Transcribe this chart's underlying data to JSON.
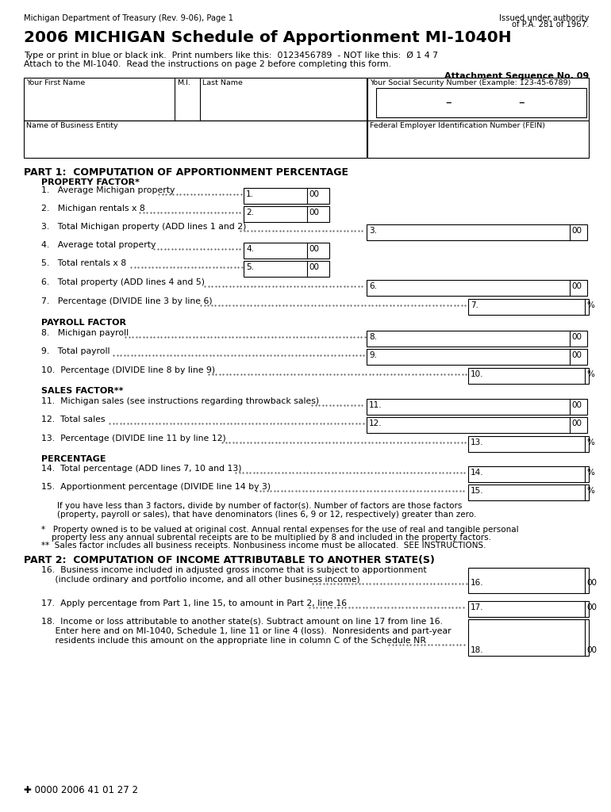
{
  "bg_color": "#ffffff",
  "header_line1": "Michigan Department of Treasury (Rev. 9-06), Page 1",
  "header_right1": "Issued under authority",
  "header_right2": "of P.A. 281 of 1967.",
  "title": "2006 MICHIGAN Schedule of Apportionment MI-1040H",
  "inst1": "Type or print in blue or black ink.  Print numbers like this:  0123456789  - NOT like this:  Ø 1 4 7",
  "inst2": "Attach to the MI-1040.  Read the instructions on page 2 before completing this form.",
  "attachment": "Attachment Sequence No. 09",
  "label_firstname": "Your First Name",
  "label_mi": "M.I.",
  "label_lastname": "Last Name",
  "label_ssn": "Your Social Security Number (Example: 123-45-6789)",
  "label_biz": "Name of Business Entity",
  "label_fein": "Federal Employer Identification Number (FEIN)",
  "part1_title": "PART 1:  COMPUTATION OF APPORTIONMENT PERCENTAGE",
  "prop_factor": "PROPERTY FACTOR*",
  "l1": "1.   Average Michigan property",
  "l2": "2.   Michigan rentals x 8",
  "l3": "3.   Total Michigan property (ADD lines 1 and 2)",
  "l4": "4.   Average total property",
  "l5": "5.   Total rentals x 8",
  "l6": "6.   Total property (ADD lines 4 and 5)",
  "l7": "7.   Percentage (DIVIDE line 3 by line 6)",
  "payroll_factor": "PAYROLL FACTOR",
  "l8": "8.   Michigan payroll",
  "l9": "9.   Total payroll",
  "l10": "10.  Percentage (DIVIDE line 8 by line 9)",
  "sales_factor": "SALES FACTOR**",
  "l11": "11.  Michigan sales (see instructions regarding throwback sales)",
  "l12": "12.  Total sales",
  "l13": "13.  Percentage (DIVIDE line 11 by line 12)",
  "pct_header": "PERCENTAGE",
  "l14": "14.  Total percentage (ADD lines 7, 10 and 13)",
  "l15": "15.  Apportionment percentage (DIVIDE line 14 by 3)",
  "l15_note1": "If you have less than 3 factors, divide by number of factor(s). Number of factors are those factors",
  "l15_note2": "(property, payroll or sales), that have denominators (lines 6, 9 or 12, respectively) greater than zero.",
  "fn1a": "*   Property owned is to be valued at original cost. Annual rental expenses for the use of real and tangible personal",
  "fn1b": "    property less any annual subrental receipts are to be multiplied by 8 and included in the property factors.",
  "fn2": "**  Sales factor includes all business receipts. Nonbusiness income must be allocated.  SEE INSTRUCTIONS.",
  "part2_title": "PART 2:  COMPUTATION OF INCOME ATTRIBUTABLE TO ANOTHER STATE(S)",
  "l16a": "16.  Business income included in adjusted gross income that is subject to apportionment",
  "l16b": "     (include ordinary and portfolio income, and all other business income)",
  "l17": "17.  Apply percentage from Part 1, line 15, to amount in Part 2, line 16",
  "l18a": "18.  Income or loss attributable to another state(s). Subtract amount on line 17 from line 16.",
  "l18b": "     Enter here and on MI-1040, Schedule 1, line 11 or line 4 (loss).  Nonresidents and part-year",
  "l18c": "     residents include this amount on the appropriate line in column C of the Schedule NR",
  "footer": "✚ 0000 2006 41 01 27 2"
}
